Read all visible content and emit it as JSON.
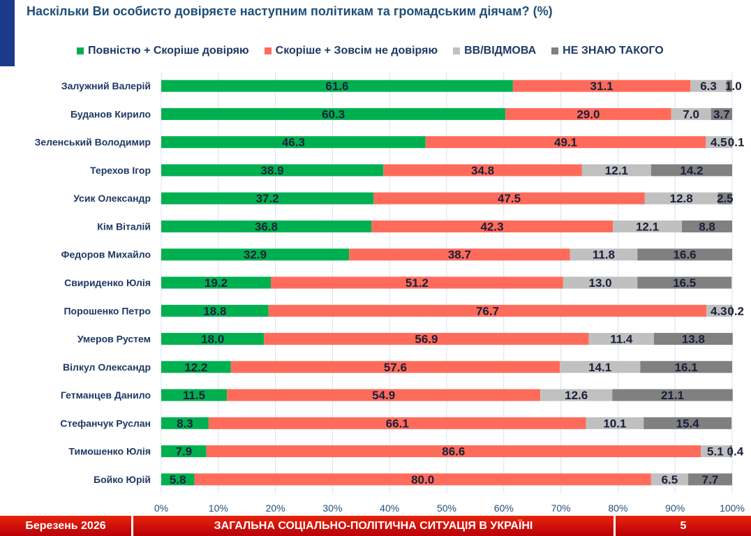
{
  "title": "Наскільки Ви особисто довіряєте наступним політикам та громадським діячам? (%)",
  "footer": {
    "date": "Березень 2026",
    "section": "ЗАГАЛЬНА СОЦІАЛЬНО-ПОЛІТИЧНА СИТУАЦІЯ В УКРАЇНІ",
    "page": "5"
  },
  "chart_data": {
    "type": "bar",
    "orientation": "horizontal",
    "stacked": true,
    "title": "Наскільки Ви особисто довіряєте наступним політикам та громадським діячам? (%)",
    "xlim": [
      0,
      100
    ],
    "xticks": [
      "0%",
      "10%",
      "20%",
      "30%",
      "40%",
      "50%",
      "60%",
      "70%",
      "80%",
      "90%",
      "100%"
    ],
    "grid": true,
    "legend_position": "top",
    "categories": [
      "Залужний Валерій",
      "Буданов Кирило",
      "Зеленський Володимир",
      "Терехов Ігор",
      "Усик Олександр",
      "Кім Віталій",
      "Федоров Михайло",
      "Свириденко Юлія",
      "Порошенко Петро",
      "Умеров Рустем",
      "Вілкул Олександр",
      "Гетманцев Данило",
      "Стефанчук Руслан",
      "Тимошенко Юлія",
      "Бойко Юрій"
    ],
    "series": [
      {
        "name": "Повністю + Скоріше довіряю",
        "color": "#00b050",
        "values": [
          61.6,
          60.3,
          46.3,
          38.9,
          37.2,
          36.8,
          32.9,
          19.2,
          18.8,
          18.0,
          12.2,
          11.5,
          8.3,
          7.9,
          5.8
        ]
      },
      {
        "name": "Скоріше + Зовсім не довіряю",
        "color": "#ff6b5b",
        "values": [
          31.1,
          29.0,
          49.1,
          34.8,
          47.5,
          42.3,
          38.7,
          51.2,
          76.7,
          56.9,
          57.6,
          54.9,
          66.1,
          86.6,
          80.0
        ]
      },
      {
        "name": "ВВ/ВІДМОВА",
        "color": "#c0c0c0",
        "values": [
          6.3,
          7.0,
          4.5,
          12.1,
          12.8,
          12.1,
          11.8,
          13.0,
          4.3,
          11.4,
          14.1,
          12.6,
          10.1,
          5.1,
          6.5
        ]
      },
      {
        "name": "НЕ ЗНАЮ ТАКОГО",
        "color": "#808080",
        "values": [
          1.0,
          3.7,
          0.1,
          14.2,
          2.5,
          8.8,
          16.6,
          16.5,
          0.2,
          13.8,
          16.1,
          21.1,
          15.4,
          0.4,
          7.7
        ]
      }
    ]
  }
}
